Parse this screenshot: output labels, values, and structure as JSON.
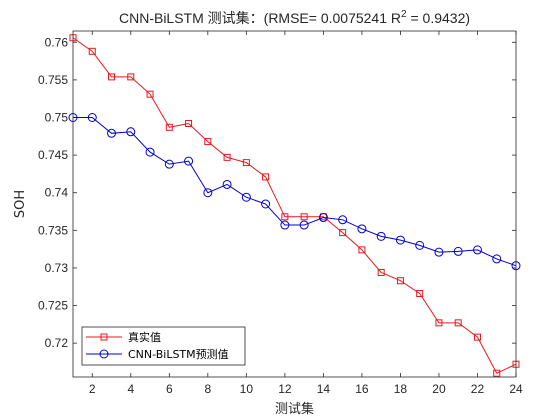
{
  "chart_data": {
    "type": "line",
    "title_main": "CNN-BiLSTM 测试集：(RMSE= 0.0075241 R",
    "title_sup": "2",
    "title_end": "  = 0.9432)",
    "xlabel": "测试集",
    "ylabel": "SOH",
    "xlim": [
      1,
      24
    ],
    "ylim": [
      0.7155,
      0.7615
    ],
    "xticks": [
      2,
      4,
      6,
      8,
      10,
      12,
      14,
      16,
      18,
      20,
      22,
      24
    ],
    "yticks": [
      0.72,
      0.725,
      0.73,
      0.735,
      0.74,
      0.745,
      0.75,
      0.755,
      0.76
    ],
    "grid": false,
    "legend_position": "bottom-left",
    "x": [
      1,
      2,
      3,
      4,
      5,
      6,
      7,
      8,
      9,
      10,
      11,
      12,
      13,
      14,
      15,
      16,
      17,
      18,
      19,
      20,
      21,
      22,
      23,
      24
    ],
    "series": [
      {
        "name": "真实值",
        "color": "#e41a1c",
        "marker": "square",
        "values": [
          0.7606,
          0.7588,
          0.7554,
          0.7554,
          0.7531,
          0.7487,
          0.7492,
          0.7468,
          0.7447,
          0.744,
          0.7421,
          0.7368,
          0.7368,
          0.7368,
          0.7347,
          0.7324,
          0.7294,
          0.7283,
          0.7266,
          0.7227,
          0.7227,
          0.7208,
          0.716,
          0.7172
        ]
      },
      {
        "name": "CNN-BiLSTM预测值",
        "color": "#0000cd",
        "marker": "circle",
        "values": [
          0.75,
          0.75,
          0.7479,
          0.7481,
          0.7454,
          0.7438,
          0.7442,
          0.74,
          0.7411,
          0.7394,
          0.7385,
          0.7357,
          0.7357,
          0.7367,
          0.7364,
          0.7352,
          0.7342,
          0.7337,
          0.733,
          0.7321,
          0.7322,
          0.7324,
          0.7312,
          0.7303
        ]
      }
    ]
  }
}
